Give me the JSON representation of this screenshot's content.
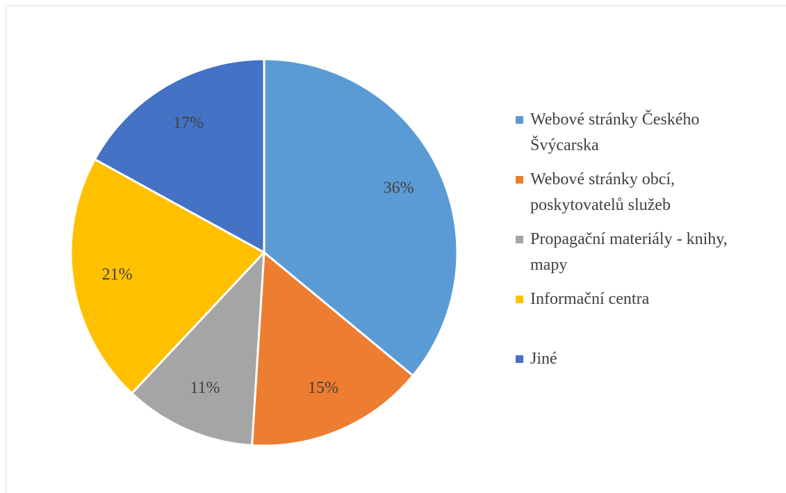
{
  "chart_data": {
    "type": "pie",
    "categories": [
      "Webové stránky Českého Švýcarska",
      "Webové stránky obcí, poskytovatelů služeb",
      "Propagační materiály - knihy, mapy",
      "Informační centra",
      "Jiné"
    ],
    "values": [
      36,
      15,
      11,
      21,
      17
    ],
    "value_labels": [
      "36%",
      "15%",
      "11%",
      "21%",
      "17%"
    ],
    "colors": [
      "#5b9bd5",
      "#ed7d31",
      "#a5a5a5",
      "#ffc000",
      "#4472c4"
    ],
    "legend": "right"
  }
}
